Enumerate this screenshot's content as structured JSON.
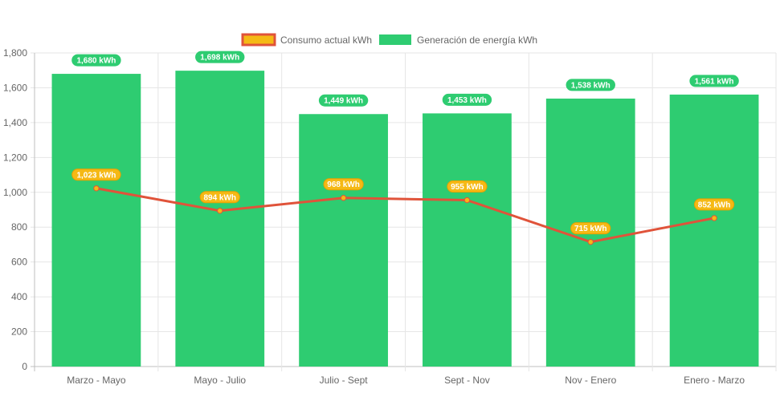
{
  "chart_data": {
    "type": "bar",
    "categories": [
      "Marzo - Mayo",
      "Mayo - Julio",
      "Julio - Sept",
      "Sept - Nov",
      "Nov - Enero",
      "Enero - Marzo"
    ],
    "series": [
      {
        "name": "Consumo actual kWh",
        "type": "line",
        "values": [
          1023,
          894,
          968,
          955,
          715,
          852
        ],
        "labels": [
          "1,023 kWh",
          "894 kWh",
          "968 kWh",
          "955 kWh",
          "715 kWh",
          "852 kWh"
        ],
        "line_color": "#e0533a",
        "point_color": "#f5b915",
        "label_bg": "#f5b915",
        "label_border": "#e8a000"
      },
      {
        "name": "Generación de energía kWh",
        "type": "bar",
        "values": [
          1680,
          1698,
          1449,
          1453,
          1538,
          1561
        ],
        "labels": [
          "1,680 kWh",
          "1,698 kWh",
          "1,449 kWh",
          "1,453 kWh",
          "1,538 kWh",
          "1,561 kWh"
        ],
        "color": "#2ecc71"
      }
    ],
    "y_ticks": [
      "0",
      "200",
      "400",
      "600",
      "800",
      "1,000",
      "1,200",
      "1,400",
      "1,600",
      "1,800"
    ],
    "ylim": [
      0,
      1800
    ],
    "grid": true,
    "legend_position": "top-center"
  }
}
